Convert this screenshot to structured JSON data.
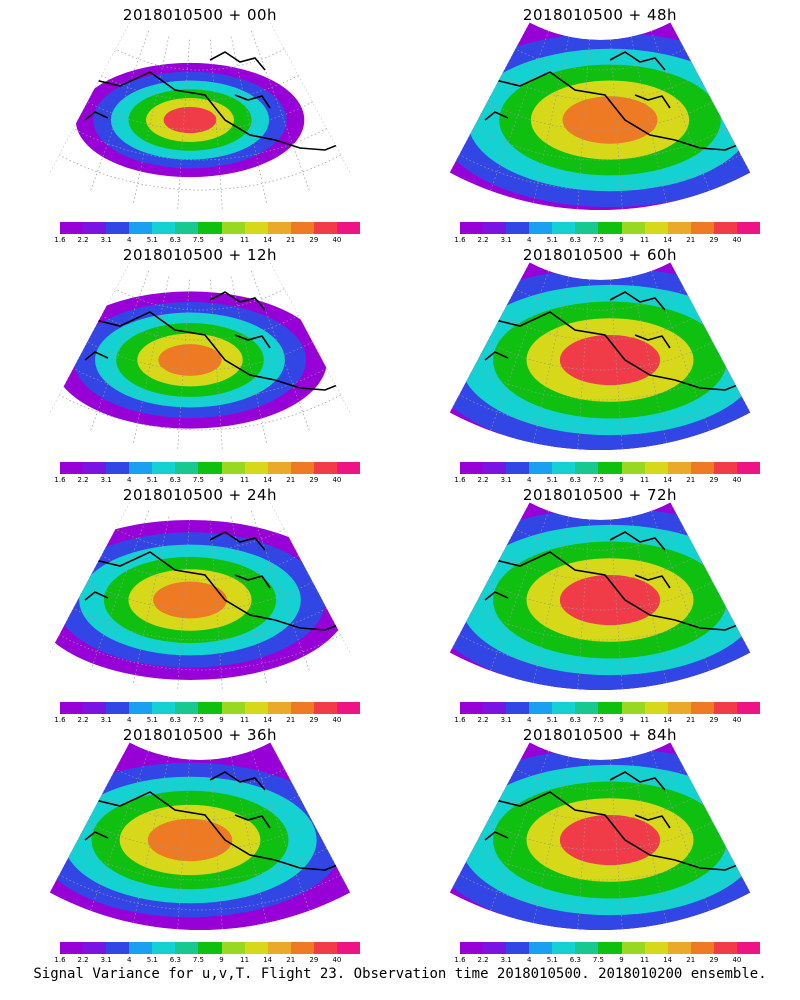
{
  "caption": "Signal Variance for u,v,T. Flight 23. Observation time 2018010500. 2018010200 ensemble.",
  "colorbar": {
    "labels": [
      "1.6",
      "2.2",
      "3.1",
      "4",
      "5.1",
      "6.3",
      "7.5",
      "9",
      "11",
      "14",
      "21",
      "29",
      "40"
    ],
    "colors": [
      "#9800d8",
      "#7a14e0",
      "#3246e6",
      "#1aa0f0",
      "#15d2d2",
      "#18c890",
      "#10c010",
      "#98d820",
      "#d8d81a",
      "#e8aa28",
      "#ee7a24",
      "#f03c48",
      "#ee1484"
    ]
  },
  "chart_data": [
    {
      "type": "heatmap",
      "title": "2018010500 + 00h",
      "field": "signal variance",
      "forecast_hour": 0,
      "max_level": "29"
    },
    {
      "type": "heatmap",
      "title": "2018010500 + 48h",
      "field": "signal variance",
      "forecast_hour": 48,
      "max_level": "21"
    },
    {
      "type": "heatmap",
      "title": "2018010500 + 12h",
      "field": "signal variance",
      "forecast_hour": 12,
      "max_level": "21"
    },
    {
      "type": "heatmap",
      "title": "2018010500 + 60h",
      "field": "signal variance",
      "forecast_hour": 60,
      "max_level": "29"
    },
    {
      "type": "heatmap",
      "title": "2018010500 + 24h",
      "field": "signal variance",
      "forecast_hour": 24,
      "max_level": "21"
    },
    {
      "type": "heatmap",
      "title": "2018010500 + 72h",
      "field": "signal variance",
      "forecast_hour": 72,
      "max_level": "29"
    },
    {
      "type": "heatmap",
      "title": "2018010500 + 36h",
      "field": "signal variance",
      "forecast_hour": 36,
      "max_level": "21"
    },
    {
      "type": "heatmap",
      "title": "2018010500 + 84h",
      "field": "signal variance",
      "forecast_hour": 84,
      "max_level": "29"
    }
  ]
}
